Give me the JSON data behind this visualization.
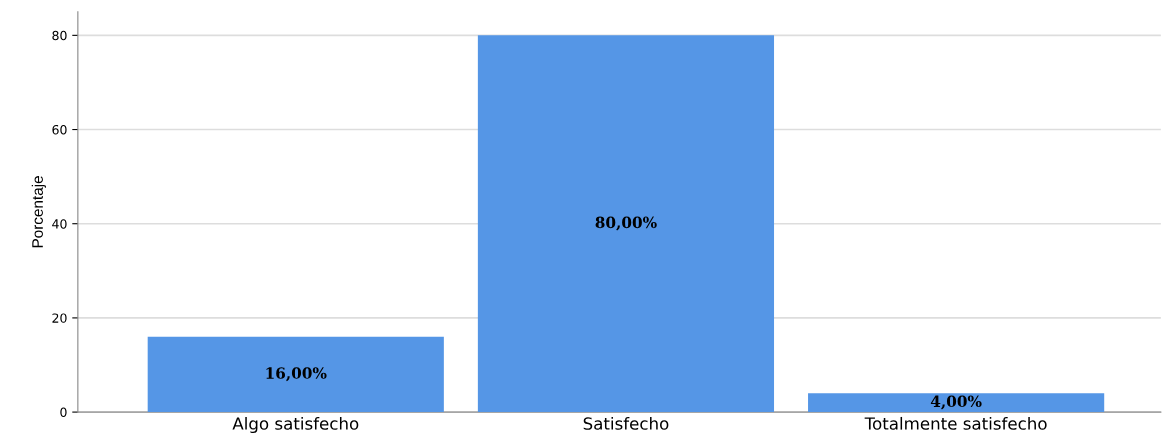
{
  "chart_data": {
    "type": "bar",
    "ylabel": "Porcentaje",
    "categories": [
      "Algo satisfecho",
      "Satisfecho",
      "Totalmente satisfecho"
    ],
    "values": [
      16,
      80,
      4
    ],
    "value_labels": [
      "16,00%",
      "80,00%",
      "4,00%"
    ],
    "color": "#5596e6",
    "ylim": [
      0,
      85
    ],
    "yticks": [
      0,
      20,
      40,
      60,
      80
    ],
    "grid": "y",
    "legend": false
  }
}
